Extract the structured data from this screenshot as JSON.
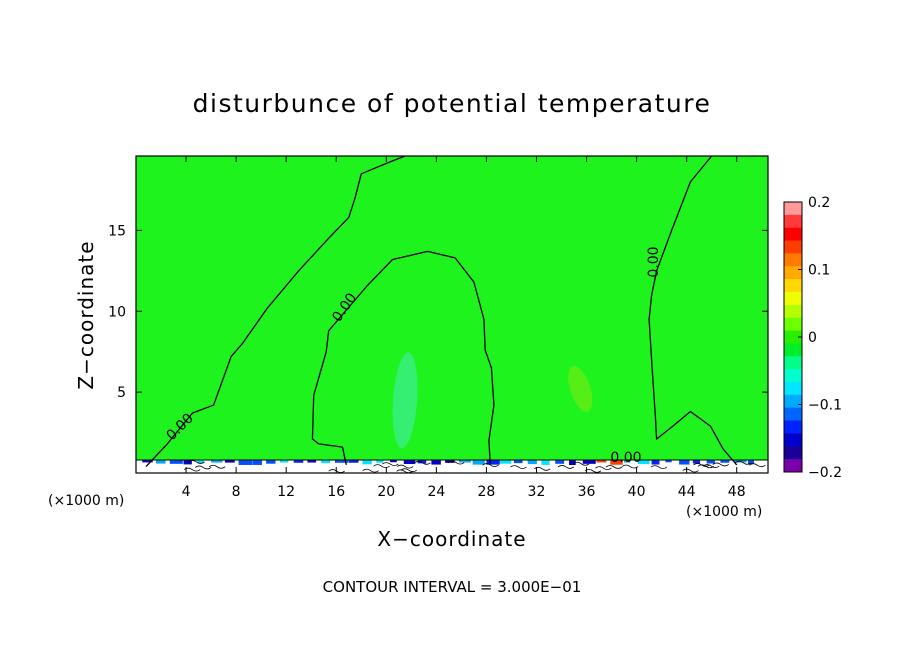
{
  "chart_data": {
    "type": "heatmap",
    "title": "disturbunce of potential temperature",
    "xlabel": "X−coordinate",
    "ylabel": "Z−coordinate",
    "x_unit_left": "(×1000 m)",
    "x_unit_right": "(×1000 m)",
    "xlim": [
      0,
      50.5
    ],
    "ylim": [
      0,
      19.6
    ],
    "xticks": [
      4,
      8,
      12,
      16,
      20,
      24,
      28,
      32,
      36,
      40,
      44,
      48
    ],
    "yticks": [
      5,
      10,
      15
    ],
    "note": "CONTOUR INTERVAL = 3.000E−01",
    "contour_labels": [
      "0.00",
      "0.00",
      "0.00",
      "0.00"
    ],
    "colorbar": {
      "min": -0.2,
      "max": 0.2,
      "ticks": [
        "0.2",
        "0.1",
        "0",
        "−0.1",
        "−0.2"
      ],
      "tick_values": [
        0.2,
        0.1,
        0,
        -0.1,
        -0.2
      ],
      "colors_top_to_bottom": [
        "#ff9a9a",
        "#ff3a3a",
        "#ff0000",
        "#ff3d00",
        "#ff7a00",
        "#ffaa00",
        "#ffd800",
        "#f0ff00",
        "#b4ff00",
        "#6eff00",
        "#2aee00",
        "#00ee2a",
        "#00ff8a",
        "#00ffcc",
        "#00e6ff",
        "#00aaff",
        "#0066ff",
        "#0022ff",
        "#0000cc",
        "#1a0099",
        "#7a00aa"
      ]
    },
    "background_value": 0.02,
    "anomalies": [
      {
        "x": 21.5,
        "y": 4.5,
        "value": -0.05,
        "label": "slightly cooler column"
      },
      {
        "x": 35.5,
        "y": 5.2,
        "value": 0.05,
        "label": "slightly warmer blob"
      }
    ],
    "contour_zero_lines": [
      {
        "points": [
          [
            0.8,
            0.4
          ],
          [
            2.5,
            1.8
          ],
          [
            4.5,
            3.7
          ],
          [
            6.2,
            4.2
          ],
          [
            7.6,
            7.2
          ],
          [
            8.5,
            8.0
          ],
          [
            10.5,
            10.2
          ],
          [
            13.0,
            12.5
          ],
          [
            15.5,
            14.6
          ],
          [
            17.0,
            15.8
          ],
          [
            17.5,
            17.0
          ],
          [
            18.0,
            18.5
          ],
          [
            20.5,
            19.3
          ],
          [
            21.5,
            19.6
          ]
        ]
      },
      {
        "points": [
          [
            28.3,
            0.6
          ],
          [
            28.2,
            2.0
          ],
          [
            28.6,
            4.2
          ],
          [
            28.4,
            6.5
          ],
          [
            27.9,
            7.6
          ],
          [
            27.8,
            9.5
          ],
          [
            27.0,
            11.8
          ],
          [
            25.5,
            13.3
          ],
          [
            23.3,
            13.7
          ],
          [
            20.5,
            13.2
          ],
          [
            18.5,
            11.6
          ],
          [
            15.4,
            8.8
          ],
          [
            15.2,
            7.5
          ],
          [
            14.2,
            4.8
          ],
          [
            14.1,
            2.1
          ],
          [
            14.6,
            1.8
          ],
          [
            16.5,
            1.6
          ],
          [
            16.8,
            0.5
          ]
        ]
      },
      {
        "points": [
          [
            48.0,
            0.5
          ],
          [
            46.9,
            1.5
          ],
          [
            45.9,
            2.9
          ],
          [
            44.3,
            3.8
          ],
          [
            42.9,
            2.9
          ],
          [
            41.6,
            2.1
          ],
          [
            41.5,
            3.5
          ],
          [
            41.3,
            5.8
          ],
          [
            41.2,
            7.0
          ],
          [
            41.0,
            9.5
          ],
          [
            41.2,
            11.0
          ],
          [
            41.6,
            12.5
          ],
          [
            42.8,
            15.0
          ],
          [
            44.3,
            18.0
          ],
          [
            46.0,
            19.6
          ]
        ]
      }
    ]
  }
}
